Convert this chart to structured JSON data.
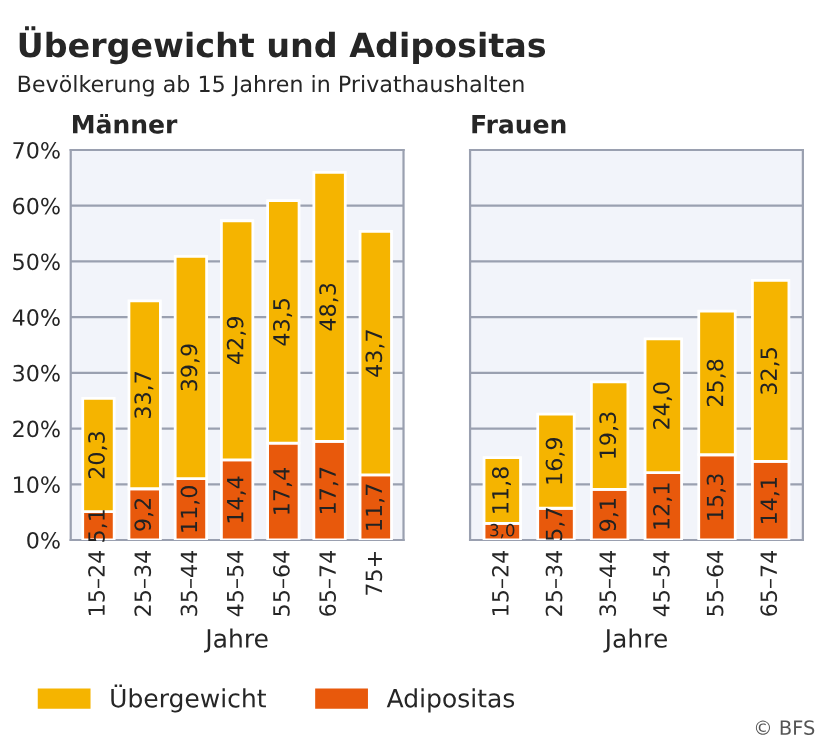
{
  "chart_data": [
    {
      "type": "bar",
      "title": "Übergewicht und Adipositas",
      "subtitle": "Bevölkerung ab 15 Jahren in Privathaushalten",
      "annotations": [
        "Männer"
      ],
      "xlabel": "Jahre",
      "stacked": true,
      "categories": [
        "15–24",
        "25–34",
        "35–44",
        "45–54",
        "55–64",
        "65–74",
        "75+"
      ],
      "series": [
        {
          "name": "Adipositas",
          "color": "#e8590c",
          "values": [
            5.1,
            9.2,
            11.0,
            14.4,
            17.4,
            17.7,
            11.7
          ],
          "value_labels": [
            "5,1",
            "9,2",
            "11,0",
            "14,4",
            "17,4",
            "17,7",
            "11,7"
          ]
        },
        {
          "name": "Übergewicht",
          "color": "#f5b400",
          "values": [
            20.3,
            33.7,
            39.9,
            42.9,
            43.5,
            48.3,
            43.7
          ],
          "value_labels": [
            "20,3",
            "33,7",
            "39,9",
            "42,9",
            "43,5",
            "48,3",
            "43,7"
          ]
        }
      ],
      "ylim": [
        0,
        70
      ],
      "yticks": [
        {
          "value": 0,
          "label": "0%"
        },
        {
          "value": 10,
          "label": "10%"
        },
        {
          "value": 20,
          "label": "20%"
        },
        {
          "value": 30,
          "label": "30%"
        },
        {
          "value": 40,
          "label": "40%"
        },
        {
          "value": 50,
          "label": "50%"
        },
        {
          "value": 60,
          "label": "60%"
        },
        {
          "value": 70,
          "label": "70%"
        }
      ],
      "grid": "y",
      "legend": "bottom"
    },
    {
      "type": "bar",
      "title": "Frauen",
      "annotations": [
        "© BFS"
      ],
      "xlabel": "Jahre",
      "stacked": true,
      "categories": [
        "15–24",
        "25–34",
        "35–44",
        "45–54",
        "55–64",
        "65–74"
      ],
      "series": [
        {
          "color": "#e8590c",
          "values": [
            3.0,
            5.7,
            9.1,
            12.1,
            15.3,
            14.1
          ],
          "value_labels": [
            "3,0",
            "5,7",
            "9,1",
            "12,1",
            "15,3",
            "14,1"
          ]
        },
        {
          "color": "#f5b400",
          "values": [
            11.8,
            16.9,
            19.3,
            24.0,
            25.8,
            32.5
          ],
          "value_labels": [
            "11,8",
            "16,9",
            "19,3",
            "24,0",
            "25,8",
            "32,5"
          ]
        }
      ],
      "ylim": [
        0,
        70
      ],
      "yticks": [
        0,
        10,
        20,
        30,
        40,
        50,
        60,
        70
      ],
      "tick_labels": "x",
      "grid": "y",
      "legend": false
    }
  ]
}
